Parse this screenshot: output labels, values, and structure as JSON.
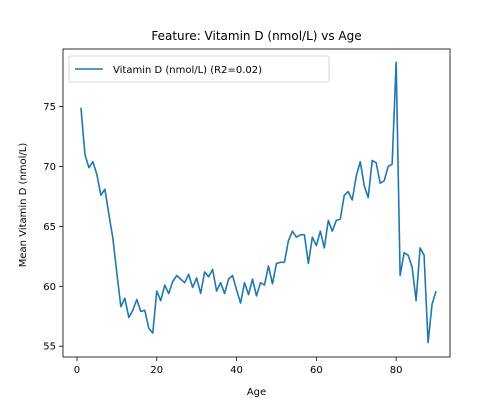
{
  "chart_data": {
    "type": "line",
    "title": "Feature: Vitamin D (nmol/L) vs Age",
    "xlabel": "Age",
    "ylabel": "Mean Vitamin D (nmol/L)",
    "xlim": [
      -3.5,
      93.5
    ],
    "ylim": [
      54.1,
      79.8
    ],
    "xticks": [
      0,
      20,
      40,
      60,
      80
    ],
    "yticks": [
      55,
      60,
      65,
      70,
      75
    ],
    "grid": false,
    "legend": "top-left",
    "series": [
      {
        "name": "Vitamin D (nmol/L) (R2=0.02)",
        "color": "#1f77b4",
        "x": [
          1,
          2,
          3,
          4,
          5,
          6,
          7,
          8,
          9,
          10,
          11,
          12,
          13,
          14,
          15,
          16,
          17,
          18,
          19,
          20,
          21,
          22,
          23,
          24,
          25,
          26,
          27,
          28,
          29,
          30,
          31,
          32,
          33,
          34,
          35,
          36,
          37,
          38,
          39,
          40,
          41,
          42,
          43,
          44,
          45,
          46,
          47,
          48,
          49,
          50,
          51,
          52,
          53,
          54,
          55,
          56,
          57,
          58,
          59,
          60,
          61,
          62,
          63,
          64,
          65,
          66,
          67,
          68,
          69,
          70,
          71,
          72,
          73,
          74,
          75,
          76,
          77,
          78,
          79,
          80,
          81,
          82,
          83,
          84,
          85,
          86,
          87,
          88,
          89,
          90
        ],
        "y": [
          74.9,
          71.0,
          69.9,
          70.4,
          69.3,
          67.6,
          68.1,
          66.0,
          64.0,
          61.1,
          58.3,
          59.0,
          57.4,
          58.0,
          58.9,
          57.9,
          58.0,
          56.5,
          56.1,
          59.6,
          58.8,
          60.1,
          59.4,
          60.4,
          60.9,
          60.6,
          60.3,
          61.0,
          59.9,
          60.7,
          59.4,
          61.2,
          60.8,
          61.4,
          59.6,
          60.3,
          59.4,
          60.6,
          60.9,
          59.7,
          58.6,
          60.3,
          59.3,
          60.6,
          59.2,
          60.3,
          60.1,
          61.7,
          60.2,
          61.9,
          62.0,
          62.0,
          63.8,
          64.6,
          64.1,
          64.3,
          64.3,
          61.9,
          64.1,
          63.4,
          64.6,
          63.2,
          65.5,
          64.6,
          65.5,
          65.6,
          67.6,
          67.9,
          67.2,
          69.2,
          70.4,
          68.4,
          67.4,
          70.5,
          70.3,
          68.6,
          68.8,
          70.0,
          70.2,
          78.7,
          60.9,
          62.8,
          62.6,
          61.6,
          58.8,
          63.2,
          62.6,
          55.3,
          58.5,
          59.6
        ]
      }
    ]
  }
}
